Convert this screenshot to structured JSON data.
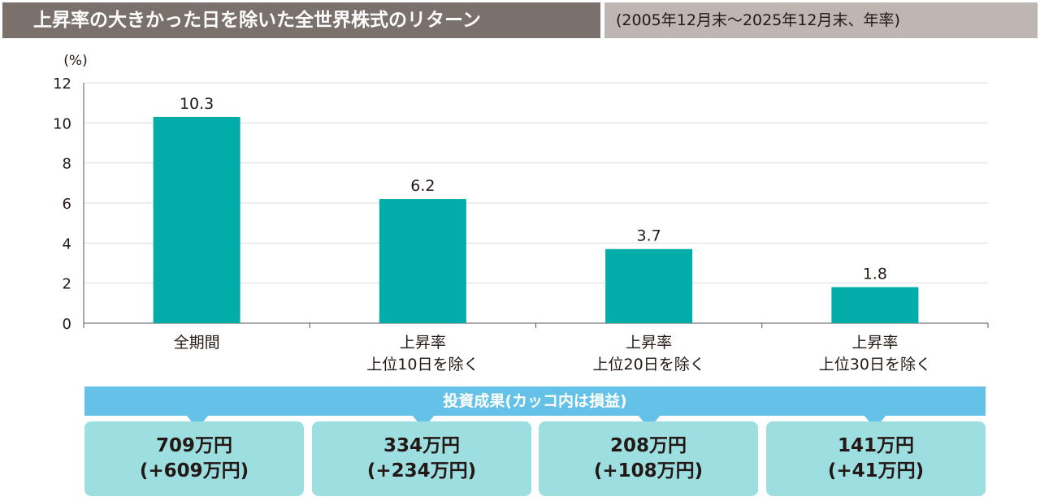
{
  "header": {
    "title": "上昇率の大きかった日を除いた全世界株式のリターン",
    "period": "(2005年12月末〜2025年12月末、年率)"
  },
  "chart_data": {
    "type": "bar",
    "ylabel": "(%)",
    "ylim": [
      0,
      12
    ],
    "yticks": [
      "0",
      "2",
      "4",
      "6",
      "8",
      "10",
      "12"
    ],
    "grid": true,
    "categories": [
      [
        "全期間"
      ],
      [
        "上昇率",
        "上位10日を除く"
      ],
      [
        "上昇率",
        "上位20日を除く"
      ],
      [
        "上昇率",
        "上位30日を除く"
      ]
    ],
    "values": [
      10.3,
      6.2,
      3.7,
      1.8
    ],
    "value_labels": [
      "10.3",
      "6.2",
      "3.7",
      "1.8"
    ],
    "bar_color": "#00ada9"
  },
  "results": {
    "title": "投資成果(カッコ内は損益)",
    "banner_color": "#64c2e8",
    "box_color": "#9ddfe0",
    "items": [
      {
        "value": "709万円",
        "gain": "(+609万円)"
      },
      {
        "value": "334万円",
        "gain": "(+234万円)"
      },
      {
        "value": "208万円",
        "gain": "(+108万円)"
      },
      {
        "value": "141万円",
        "gain": "(+41万円)"
      }
    ]
  }
}
